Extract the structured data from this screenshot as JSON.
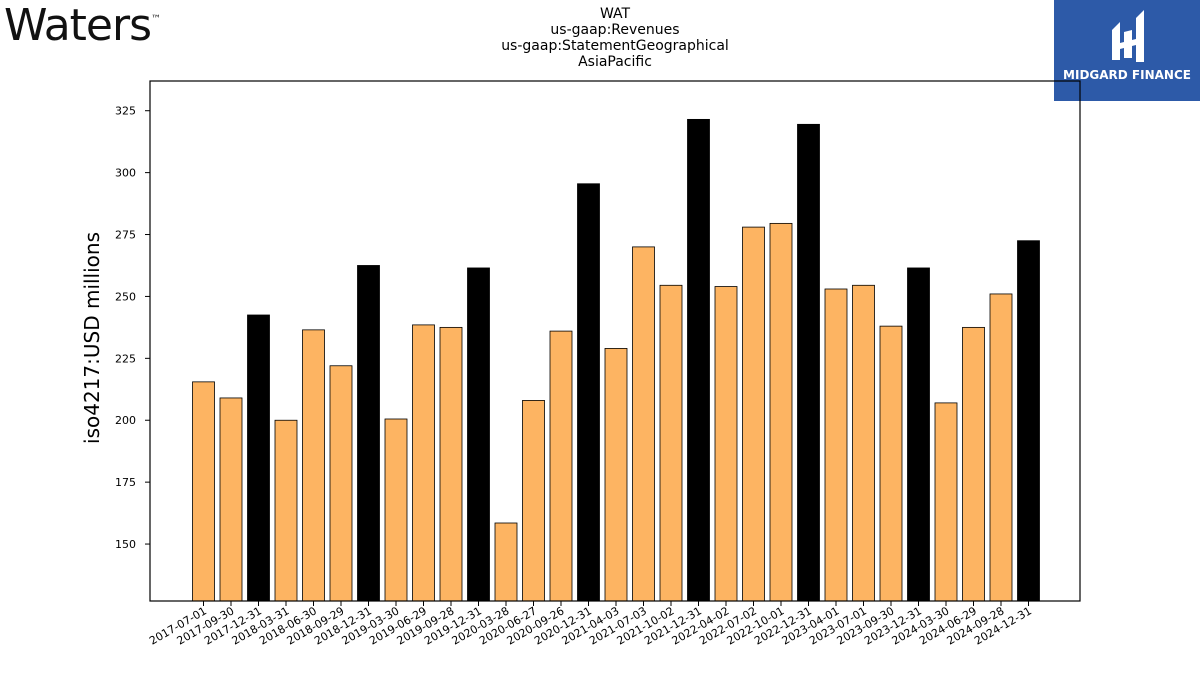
{
  "branding": {
    "left_logo": "Waters",
    "left_logo_tm": "™",
    "right_logo": "MIDGARD FINANCE"
  },
  "colors": {
    "bar_default": "#fdb462",
    "bar_highlight": "#000000",
    "bar_edge": "#000000",
    "brand_blue": "#2d5aa8"
  },
  "chart_data": {
    "type": "bar",
    "title_lines": [
      "WAT",
      "us-gaap:Revenues",
      "us-gaap:StatementGeographical",
      "AsiaPacific"
    ],
    "xlabel": "",
    "ylabel": "iso4217:USD  millions",
    "ylim": [
      127,
      337
    ],
    "yticks": [
      150,
      175,
      200,
      225,
      250,
      275,
      300,
      325
    ],
    "categories": [
      "2017-07-01",
      "2017-09-30",
      "2017-12-31",
      "2018-03-31",
      "2018-06-30",
      "2018-09-29",
      "2018-12-31",
      "2019-03-30",
      "2019-06-29",
      "2019-09-28",
      "2019-12-31",
      "2020-03-28",
      "2020-06-27",
      "2020-09-26",
      "2020-12-31",
      "2021-04-03",
      "2021-07-03",
      "2021-10-02",
      "2021-12-31",
      "2022-04-02",
      "2022-07-02",
      "2022-10-01",
      "2022-12-31",
      "2023-04-01",
      "2023-07-01",
      "2023-09-30",
      "2023-12-31",
      "2024-03-30",
      "2024-06-29",
      "2024-09-28",
      "2024-12-31"
    ],
    "values": [
      215.5,
      209,
      242.5,
      200,
      236.5,
      222,
      262.5,
      200.5,
      238.5,
      237.5,
      261.5,
      158.5,
      208,
      236,
      295.5,
      229,
      270,
      254.5,
      321.5,
      254,
      278,
      279.5,
      319.5,
      253,
      254.5,
      238,
      261.5,
      207,
      237.5,
      251,
      272.5
    ],
    "highlight": [
      false,
      false,
      true,
      false,
      false,
      false,
      true,
      false,
      false,
      false,
      true,
      false,
      false,
      false,
      true,
      false,
      false,
      false,
      true,
      false,
      false,
      false,
      true,
      false,
      false,
      false,
      true,
      false,
      false,
      false,
      true
    ],
    "grid": false,
    "legend": "none"
  }
}
